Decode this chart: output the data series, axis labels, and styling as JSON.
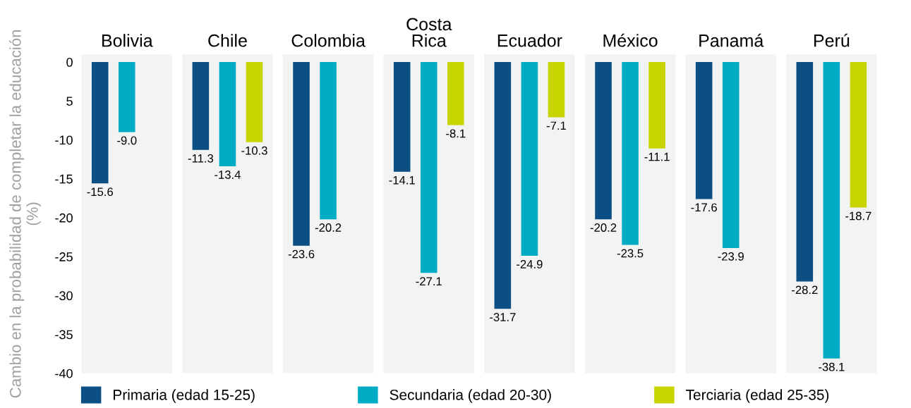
{
  "chart_data": {
    "type": "bar",
    "categories": [
      "Bolivia",
      "Chile",
      "Colombia",
      "Costa\nRica",
      "Ecuador",
      "México",
      "Panamá",
      "Perú"
    ],
    "ylabel": "Cambio en la probabilidad de completar la educación (%)",
    "ylim": [
      -40,
      1
    ],
    "yticks": [
      0,
      {
        "value": -5,
        "label": "5"
      },
      -10,
      -15,
      -20,
      -25,
      -30,
      -35,
      -40
    ],
    "legend": "bottom",
    "series": [
      {
        "name": "Primaria (edad 15-25)",
        "color": "#0b4f84",
        "values": [
          -15.6,
          -11.3,
          -23.6,
          -14.1,
          -31.7,
          -20.2,
          -17.6,
          -28.2
        ],
        "value_labels": [
          "-15.6",
          "-11.3",
          "-23.6",
          "-14.1",
          "-31.7",
          "-20.2",
          "-17.6",
          "-28.2"
        ]
      },
      {
        "name": "Secundaria (edad 20-30)",
        "color": "#00abc4",
        "values": [
          -9.0,
          -13.4,
          -20.2,
          -27.1,
          -24.9,
          -23.5,
          -23.9,
          -38.1
        ],
        "value_labels": [
          "-9.0",
          "-13.4",
          "-20.2",
          "-27.1",
          "-24.9",
          "-23.5",
          "-23.9",
          "-38.1"
        ]
      },
      {
        "name": "Terciaria (edad 25-35)",
        "color": "#c8d400",
        "values": [
          null,
          -10.3,
          null,
          -8.1,
          -7.1,
          -11.1,
          null,
          -18.7
        ],
        "value_labels": [
          null,
          "-10.3",
          null,
          "-8.1",
          "-7.1",
          "-11.1",
          null,
          "-18.7"
        ]
      }
    ]
  }
}
